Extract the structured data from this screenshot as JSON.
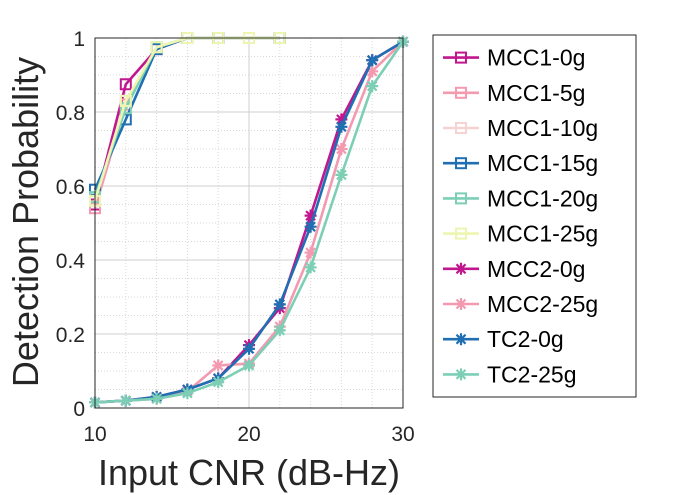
{
  "chart_data": {
    "type": "line",
    "xlabel": "Input CNR (dB-Hz)",
    "ylabel": "Detection Probability",
    "xlim": [
      10,
      30
    ],
    "ylim": [
      0,
      1
    ],
    "x_ticks": [
      "10",
      "20",
      "30"
    ],
    "y_ticks": [
      "0",
      "0.2",
      "0.4",
      "0.6",
      "0.8",
      "1"
    ],
    "grid": "major and minor (dotted)",
    "legend_position": "outside right",
    "series": [
      {
        "name": "MCC1-0g",
        "color": "#c0168e",
        "marker": "square",
        "x": [
          10,
          12,
          14,
          16,
          18,
          20,
          22
        ],
        "y": [
          0.55,
          0.875,
          0.97,
          1.0,
          1.0,
          1.0,
          1.0
        ]
      },
      {
        "name": "MCC1-5g",
        "color": "#f39ab0",
        "marker": "square",
        "x": [
          10,
          12,
          14,
          16,
          18,
          20,
          22
        ],
        "y": [
          0.54,
          0.82,
          0.97,
          1.0,
          1.0,
          1.0,
          1.0
        ]
      },
      {
        "name": "MCC1-10g",
        "color": "#f6d3d3",
        "marker": "square",
        "x": [
          10,
          12,
          14,
          16,
          18,
          20,
          22
        ],
        "y": [
          0.56,
          0.83,
          0.97,
          1.0,
          1.0,
          1.0,
          1.0
        ]
      },
      {
        "name": "MCC1-15g",
        "color": "#1f6fb2",
        "marker": "square",
        "x": [
          10,
          12,
          14,
          16,
          18,
          20,
          22
        ],
        "y": [
          0.59,
          0.78,
          0.97,
          1.0,
          1.0,
          1.0,
          1.0
        ]
      },
      {
        "name": "MCC1-20g",
        "color": "#7ccfb5",
        "marker": "square",
        "x": [
          10,
          12,
          14,
          16,
          18,
          20,
          22
        ],
        "y": [
          0.57,
          0.81,
          0.975,
          1.0,
          1.0,
          1.0,
          1.0
        ]
      },
      {
        "name": "MCC1-25g",
        "color": "#eef5b0",
        "marker": "square",
        "x": [
          10,
          12,
          14,
          16,
          18,
          20,
          22
        ],
        "y": [
          0.56,
          0.83,
          0.975,
          1.0,
          1.0,
          1.0,
          1.0
        ]
      },
      {
        "name": "MCC2-0g",
        "color": "#c0168e",
        "marker": "asterisk",
        "x": [
          10,
          12,
          14,
          16,
          18,
          20,
          22,
          24,
          26,
          28,
          30
        ],
        "y": [
          0.015,
          0.02,
          0.03,
          0.05,
          0.08,
          0.17,
          0.27,
          0.52,
          0.78,
          0.94,
          0.99
        ]
      },
      {
        "name": "MCC2-25g",
        "color": "#f39ab0",
        "marker": "asterisk",
        "x": [
          10,
          12,
          14,
          16,
          18,
          20,
          22,
          24,
          26,
          28,
          30
        ],
        "y": [
          0.015,
          0.02,
          0.025,
          0.045,
          0.115,
          0.12,
          0.22,
          0.42,
          0.7,
          0.91,
          0.99
        ]
      },
      {
        "name": "TC2-0g",
        "color": "#1f6fb2",
        "marker": "asterisk",
        "x": [
          10,
          12,
          14,
          16,
          18,
          20,
          22,
          24,
          26,
          28,
          30
        ],
        "y": [
          0.015,
          0.02,
          0.03,
          0.05,
          0.08,
          0.16,
          0.28,
          0.49,
          0.76,
          0.94,
          0.99
        ]
      },
      {
        "name": "TC2-25g",
        "color": "#7ccfb5",
        "marker": "asterisk",
        "x": [
          10,
          12,
          14,
          16,
          18,
          20,
          22,
          24,
          26,
          28,
          30
        ],
        "y": [
          0.015,
          0.02,
          0.025,
          0.04,
          0.07,
          0.115,
          0.21,
          0.38,
          0.63,
          0.87,
          0.99
        ]
      }
    ]
  }
}
